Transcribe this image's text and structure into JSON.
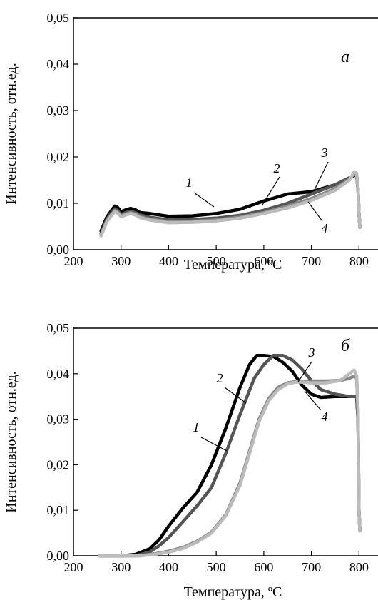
{
  "chart_data": [
    {
      "type": "line",
      "panel_label": "а",
      "xlabel": "Температура, ºС",
      "ylabel": "Интенсивность, отн.ед.",
      "xlim": [
        200,
        840
      ],
      "ylim": [
        0,
        0.05
      ],
      "xticks": [
        200,
        300,
        400,
        500,
        600,
        700,
        800
      ],
      "yticks": [
        "0,00",
        "0,01",
        "0,02",
        "0,03",
        "0,04",
        "0,05"
      ],
      "grid": false,
      "curve_labels": [
        "1",
        "2",
        "3",
        "4"
      ],
      "series": [
        {
          "color": "#000000",
          "x": [
            258,
            270,
            280,
            287,
            292,
            300,
            310,
            320,
            330,
            340,
            360,
            400,
            450,
            500,
            550,
            600,
            650,
            700,
            750,
            780,
            790,
            795,
            798,
            800,
            802
          ],
          "y": [
            0.004,
            0.007,
            0.0085,
            0.0094,
            0.0092,
            0.0082,
            0.0086,
            0.0089,
            0.0086,
            0.008,
            0.0078,
            0.0072,
            0.0073,
            0.0078,
            0.0087,
            0.0105,
            0.012,
            0.0125,
            0.014,
            0.0155,
            0.016,
            0.016,
            0.013,
            0.008,
            0.0048
          ]
        },
        {
          "color": "#555555",
          "x": [
            258,
            270,
            280,
            287,
            292,
            300,
            310,
            320,
            330,
            340,
            360,
            400,
            450,
            500,
            550,
            600,
            650,
            700,
            750,
            780,
            790,
            795,
            798,
            800,
            802
          ],
          "y": [
            0.0035,
            0.0065,
            0.008,
            0.0088,
            0.0085,
            0.0076,
            0.008,
            0.0083,
            0.008,
            0.0075,
            0.007,
            0.0064,
            0.0065,
            0.0068,
            0.0074,
            0.0085,
            0.01,
            0.012,
            0.014,
            0.0155,
            0.0162,
            0.016,
            0.013,
            0.008,
            0.0048
          ]
        },
        {
          "color": "#888888",
          "x": [
            258,
            270,
            280,
            287,
            292,
            300,
            310,
            320,
            330,
            340,
            360,
            400,
            450,
            500,
            550,
            600,
            650,
            700,
            750,
            780,
            790,
            795,
            798,
            800,
            802
          ],
          "y": [
            0.0032,
            0.0062,
            0.0076,
            0.0084,
            0.0082,
            0.0073,
            0.0077,
            0.008,
            0.0077,
            0.0071,
            0.0066,
            0.006,
            0.0061,
            0.0064,
            0.007,
            0.008,
            0.0094,
            0.011,
            0.0132,
            0.0152,
            0.0165,
            0.0162,
            0.013,
            0.008,
            0.0048
          ]
        },
        {
          "color": "#bbbbbb",
          "x": [
            258,
            270,
            280,
            287,
            292,
            300,
            310,
            320,
            330,
            340,
            360,
            400,
            450,
            500,
            550,
            600,
            650,
            700,
            750,
            780,
            790,
            795,
            798,
            800,
            802
          ],
          "y": [
            0.003,
            0.006,
            0.0074,
            0.0082,
            0.008,
            0.0071,
            0.0075,
            0.0078,
            0.0075,
            0.0069,
            0.0064,
            0.0058,
            0.0059,
            0.0062,
            0.0068,
            0.0078,
            0.009,
            0.0106,
            0.0128,
            0.015,
            0.0168,
            0.0165,
            0.0132,
            0.008,
            0.0048
          ]
        }
      ]
    },
    {
      "type": "line",
      "panel_label": "б",
      "xlabel": "Температура, ºС",
      "ylabel": "Интенсивность, отн.ед.",
      "xlim": [
        200,
        840
      ],
      "ylim": [
        0,
        0.05
      ],
      "xticks": [
        200,
        300,
        400,
        500,
        600,
        700,
        800
      ],
      "yticks": [
        "0,00",
        "0,01",
        "0,02",
        "0,03",
        "0,04",
        "0,05"
      ],
      "grid": false,
      "curve_labels": [
        "1",
        "2",
        "3",
        "4"
      ],
      "series": [
        {
          "color": "#000000",
          "x": [
            255,
            300,
            330,
            360,
            380,
            400,
            430,
            460,
            490,
            520,
            550,
            570,
            585,
            600,
            620,
            640,
            660,
            680,
            700,
            720,
            750,
            780,
            790,
            795,
            798,
            800,
            802
          ],
          "y": [
            0.0,
            0.0,
            0.0003,
            0.0015,
            0.0035,
            0.0065,
            0.0105,
            0.014,
            0.02,
            0.028,
            0.037,
            0.042,
            0.044,
            0.044,
            0.0438,
            0.0425,
            0.0405,
            0.0375,
            0.0355,
            0.0348,
            0.035,
            0.035,
            0.035,
            0.035,
            0.03,
            0.01,
            0.0055
          ]
        },
        {
          "color": "#555555",
          "x": [
            255,
            330,
            360,
            380,
            400,
            430,
            460,
            490,
            520,
            550,
            580,
            600,
            620,
            640,
            660,
            680,
            700,
            720,
            750,
            780,
            790,
            795,
            798,
            800,
            802
          ],
          "y": [
            0.0,
            0.0,
            0.0008,
            0.0022,
            0.004,
            0.0075,
            0.011,
            0.015,
            0.0225,
            0.031,
            0.039,
            0.042,
            0.044,
            0.044,
            0.043,
            0.041,
            0.0385,
            0.0365,
            0.0355,
            0.035,
            0.035,
            0.035,
            0.03,
            0.01,
            0.0055
          ]
        },
        {
          "color": "#888888",
          "x": [
            255,
            340,
            370,
            400,
            430,
            460,
            490,
            520,
            550,
            570,
            590,
            610,
            630,
            650,
            670,
            700,
            730,
            760,
            780,
            790,
            795,
            798,
            800,
            802
          ],
          "y": [
            0.0,
            0.0,
            0.0004,
            0.001,
            0.0018,
            0.0032,
            0.0052,
            0.009,
            0.016,
            0.023,
            0.03,
            0.0345,
            0.037,
            0.038,
            0.0383,
            0.0384,
            0.0384,
            0.0385,
            0.039,
            0.0395,
            0.039,
            0.032,
            0.01,
            0.0055
          ]
        },
        {
          "color": "#bbbbbb",
          "x": [
            255,
            340,
            370,
            400,
            430,
            460,
            490,
            520,
            550,
            570,
            590,
            610,
            630,
            650,
            670,
            700,
            730,
            760,
            780,
            790,
            795,
            798,
            800,
            802
          ],
          "y": [
            0.0,
            0.0,
            0.0003,
            0.0008,
            0.0016,
            0.003,
            0.005,
            0.0088,
            0.0155,
            0.0225,
            0.0295,
            0.034,
            0.0365,
            0.0378,
            0.0382,
            0.038,
            0.038,
            0.0385,
            0.04,
            0.0408,
            0.0395,
            0.032,
            0.01,
            0.0055
          ]
        }
      ]
    }
  ]
}
